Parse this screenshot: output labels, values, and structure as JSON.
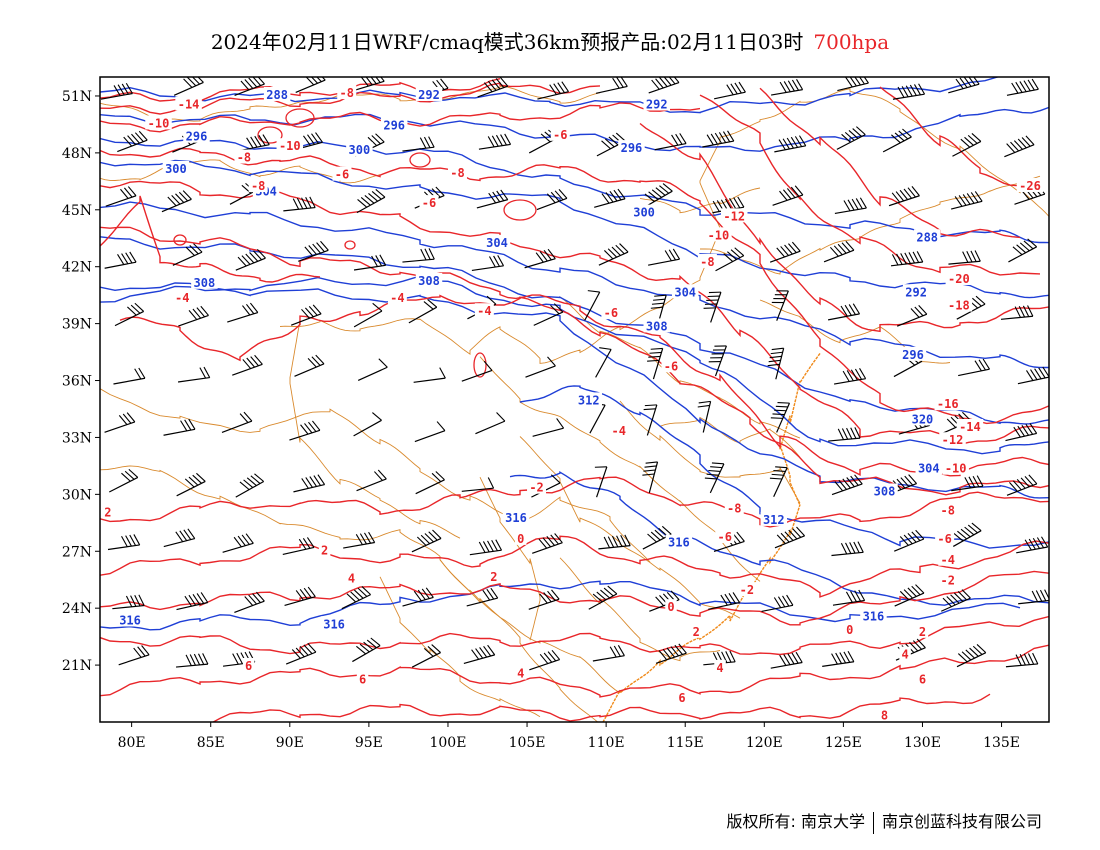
{
  "title": {
    "text": "2024年02月11日WRF/cmaq模式36km预报产品:02月11日03时",
    "level": "700hpa"
  },
  "colors": {
    "temperature": "#e8262a",
    "height": "#1f3fd6",
    "borders": "#d98a2e",
    "coast": "#f08a1a",
    "barb": "#000000"
  },
  "axes": {
    "lat_labels": [
      "51N",
      "48N",
      "45N",
      "42N",
      "39N",
      "36N",
      "33N",
      "30N",
      "27N",
      "24N",
      "21N"
    ],
    "lat_values": [
      51,
      48,
      45,
      42,
      39,
      36,
      33,
      30,
      27,
      24,
      21
    ],
    "lon_labels": [
      "80E",
      "85E",
      "90E",
      "95E",
      "100E",
      "105E",
      "110E",
      "115E",
      "120E",
      "125E",
      "130E",
      "135E"
    ],
    "lon_values": [
      80,
      85,
      90,
      95,
      100,
      105,
      110,
      115,
      120,
      125,
      130,
      135
    ],
    "lon_range": [
      78,
      138
    ],
    "lat_range": [
      18,
      52
    ]
  },
  "height_labels": [
    {
      "text": "288",
      "lon": 89.2,
      "lat": 51.0
    },
    {
      "text": "292",
      "lon": 98.8,
      "lat": 51.0
    },
    {
      "text": "292",
      "lon": 113.2,
      "lat": 50.5
    },
    {
      "text": "292",
      "lon": 129.6,
      "lat": 40.6
    },
    {
      "text": "296",
      "lon": 84.1,
      "lat": 48.8
    },
    {
      "text": "296",
      "lon": 96.6,
      "lat": 49.4
    },
    {
      "text": "296",
      "lon": 111.6,
      "lat": 48.2
    },
    {
      "text": "296",
      "lon": 129.4,
      "lat": 37.3
    },
    {
      "text": "288",
      "lon": 130.3,
      "lat": 43.5
    },
    {
      "text": "300",
      "lon": 82.8,
      "lat": 47.1
    },
    {
      "text": "300",
      "lon": 94.4,
      "lat": 48.1
    },
    {
      "text": "300",
      "lon": 112.4,
      "lat": 44.8
    },
    {
      "text": "304",
      "lon": 88.5,
      "lat": 45.9
    },
    {
      "text": "304",
      "lon": 103.1,
      "lat": 43.2
    },
    {
      "text": "304",
      "lon": 115.0,
      "lat": 40.6
    },
    {
      "text": "304",
      "lon": 130.4,
      "lat": 31.3
    },
    {
      "text": "308",
      "lon": 84.6,
      "lat": 41.1
    },
    {
      "text": "308",
      "lon": 98.8,
      "lat": 41.2
    },
    {
      "text": "308",
      "lon": 113.2,
      "lat": 38.8
    },
    {
      "text": "308",
      "lon": 127.6,
      "lat": 30.1
    },
    {
      "text": "312",
      "lon": 108.9,
      "lat": 34.9
    },
    {
      "text": "312",
      "lon": 120.6,
      "lat": 28.6
    },
    {
      "text": "316",
      "lon": 104.3,
      "lat": 28.7
    },
    {
      "text": "316",
      "lon": 114.6,
      "lat": 27.4
    },
    {
      "text": "316",
      "lon": 79.9,
      "lat": 23.3
    },
    {
      "text": "316",
      "lon": 92.8,
      "lat": 23.1
    },
    {
      "text": "316",
      "lon": 126.9,
      "lat": 23.5
    },
    {
      "text": "320",
      "lon": 130.0,
      "lat": 33.9
    }
  ],
  "temp_labels": [
    {
      "text": "-14",
      "lon": 83.6,
      "lat": 50.5
    },
    {
      "text": "-10",
      "lon": 81.7,
      "lat": 49.5
    },
    {
      "text": "-8",
      "lon": 93.6,
      "lat": 51.1
    },
    {
      "text": "-10",
      "lon": 90.0,
      "lat": 48.3
    },
    {
      "text": "-8",
      "lon": 87.1,
      "lat": 47.7
    },
    {
      "text": "-8",
      "lon": 88.0,
      "lat": 46.2
    },
    {
      "text": "-6",
      "lon": 93.3,
      "lat": 46.8
    },
    {
      "text": "-8",
      "lon": 100.6,
      "lat": 46.9
    },
    {
      "text": "-6",
      "lon": 98.8,
      "lat": 45.3
    },
    {
      "text": "-6",
      "lon": 107.1,
      "lat": 48.9
    },
    {
      "text": "-4",
      "lon": 83.2,
      "lat": 40.3
    },
    {
      "text": "-4",
      "lon": 96.8,
      "lat": 40.3
    },
    {
      "text": "-4",
      "lon": 102.3,
      "lat": 39.6
    },
    {
      "text": "-6",
      "lon": 110.3,
      "lat": 39.5
    },
    {
      "text": "-6",
      "lon": 114.1,
      "lat": 36.7
    },
    {
      "text": "-8",
      "lon": 116.4,
      "lat": 42.2
    },
    {
      "text": "-10",
      "lon": 117.1,
      "lat": 43.6
    },
    {
      "text": "-12",
      "lon": 118.1,
      "lat": 44.6
    },
    {
      "text": "-26",
      "lon": 136.8,
      "lat": 46.2
    },
    {
      "text": "-20",
      "lon": 132.3,
      "lat": 41.3
    },
    {
      "text": "-18",
      "lon": 132.3,
      "lat": 39.9
    },
    {
      "text": "-16",
      "lon": 131.6,
      "lat": 34.7
    },
    {
      "text": "-14",
      "lon": 133.0,
      "lat": 33.5
    },
    {
      "text": "-12",
      "lon": 131.9,
      "lat": 32.8
    },
    {
      "text": "-10",
      "lon": 132.1,
      "lat": 31.3
    },
    {
      "text": "-8",
      "lon": 131.6,
      "lat": 29.1
    },
    {
      "text": "-6",
      "lon": 131.4,
      "lat": 27.6
    },
    {
      "text": "-4",
      "lon": 131.6,
      "lat": 26.5
    },
    {
      "text": "-2",
      "lon": 131.6,
      "lat": 25.4
    },
    {
      "text": "-8",
      "lon": 118.1,
      "lat": 29.2
    },
    {
      "text": "-6",
      "lon": 117.5,
      "lat": 27.7
    },
    {
      "text": "-4",
      "lon": 110.8,
      "lat": 33.3
    },
    {
      "text": "-2",
      "lon": 105.6,
      "lat": 30.3
    },
    {
      "text": "-2",
      "lon": 118.9,
      "lat": 24.9
    },
    {
      "text": "0",
      "lon": 104.6,
      "lat": 27.6
    },
    {
      "text": "0",
      "lon": 114.1,
      "lat": 24.0
    },
    {
      "text": "0",
      "lon": 125.4,
      "lat": 22.8
    },
    {
      "text": "2",
      "lon": 78.5,
      "lat": 29.0
    },
    {
      "text": "2",
      "lon": 92.2,
      "lat": 27.0
    },
    {
      "text": "2",
      "lon": 102.9,
      "lat": 25.6
    },
    {
      "text": "2",
      "lon": 115.7,
      "lat": 22.7
    },
    {
      "text": "2",
      "lon": 130.0,
      "lat": 22.7
    },
    {
      "text": "4",
      "lon": 93.9,
      "lat": 25.5
    },
    {
      "text": "4",
      "lon": 104.6,
      "lat": 20.5
    },
    {
      "text": "4",
      "lon": 117.2,
      "lat": 20.8
    },
    {
      "text": "4",
      "lon": 128.9,
      "lat": 21.5
    },
    {
      "text": "6",
      "lon": 87.4,
      "lat": 20.9
    },
    {
      "text": "6",
      "lon": 94.6,
      "lat": 20.2
    },
    {
      "text": "6",
      "lon": 114.8,
      "lat": 19.2
    },
    {
      "text": "6",
      "lon": 130.0,
      "lat": 20.2
    },
    {
      "text": "8",
      "lon": 127.6,
      "lat": 18.3
    }
  ],
  "footer": {
    "left": "版权所有: 南京大学",
    "right": "南京创蓝科技有限公司"
  }
}
